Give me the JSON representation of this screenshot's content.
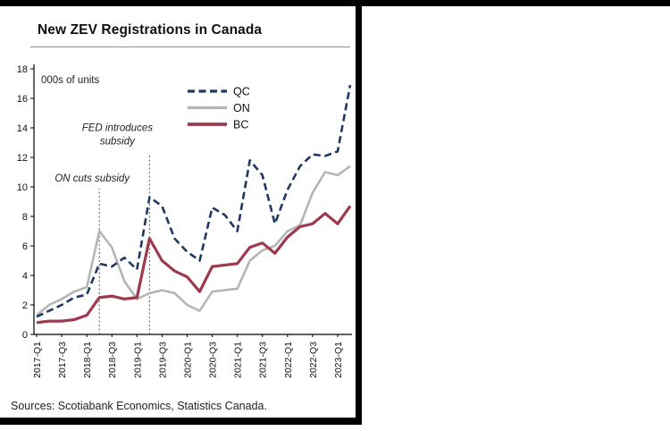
{
  "chart_data": {
    "type": "line",
    "title": "New ZEV Registrations in Canada",
    "unit_label": "000s of units",
    "x": [
      "2017-Q1",
      "2017-Q2",
      "2017-Q3",
      "2017-Q4",
      "2018-Q1",
      "2018-Q2",
      "2018-Q3",
      "2018-Q4",
      "2019-Q1",
      "2019-Q2",
      "2019-Q3",
      "2019-Q4",
      "2020-Q1",
      "2020-Q2",
      "2020-Q3",
      "2020-Q4",
      "2021-Q1",
      "2021-Q2",
      "2021-Q3",
      "2021-Q4",
      "2022-Q1",
      "2022-Q2",
      "2022-Q3",
      "2022-Q4",
      "2023-Q1",
      "2023-Q2"
    ],
    "x_tick_labels": [
      "2017-Q1",
      "2017-Q3",
      "2018-Q1",
      "2018-Q3",
      "2019-Q1",
      "2019-Q3",
      "2020-Q1",
      "2020-Q3",
      "2021-Q1",
      "2021-Q3",
      "2022-Q1",
      "2022-Q3",
      "2023-Q1"
    ],
    "ylim": [
      0,
      18
    ],
    "ytick_step": 2,
    "grid": false,
    "legend_position": "inside-top-center",
    "series": [
      {
        "name": "QC",
        "color": "#1f3864",
        "dash": "8 4.5",
        "width": 2.6,
        "values": [
          1.2,
          1.6,
          2.0,
          2.5,
          2.7,
          4.8,
          4.6,
          5.2,
          4.4,
          9.3,
          8.7,
          6.5,
          5.6,
          5.0,
          8.6,
          8.1,
          7.0,
          11.8,
          10.8,
          7.5,
          9.8,
          11.4,
          12.2,
          12.1,
          12.4,
          16.9
        ]
      },
      {
        "name": "ON",
        "color": "#b5b5b5",
        "dash": "",
        "width": 2.6,
        "values": [
          1.3,
          2.0,
          2.4,
          2.9,
          3.2,
          7.0,
          5.9,
          3.6,
          2.4,
          2.8,
          3.0,
          2.8,
          2.0,
          1.6,
          2.9,
          3.0,
          3.1,
          5.0,
          5.7,
          6.0,
          7.0,
          7.4,
          9.6,
          11.0,
          10.8,
          11.4
        ]
      },
      {
        "name": "BC",
        "color": "#9d3a4e",
        "dash": "",
        "width": 3.2,
        "values": [
          0.8,
          0.9,
          0.9,
          1.0,
          1.3,
          2.5,
          2.6,
          2.4,
          2.5,
          6.5,
          5.0,
          4.3,
          3.9,
          2.9,
          4.6,
          4.7,
          4.8,
          5.9,
          6.2,
          5.5,
          6.6,
          7.3,
          7.5,
          8.2,
          7.5,
          8.7
        ]
      }
    ],
    "annotations": [
      {
        "label_lines": [
          "ON cuts subsidy"
        ],
        "x": "2018-Q2",
        "x_index": 5,
        "line_top_value": 9.9,
        "label_y_value": 10.35,
        "label_anchor": "middle",
        "label_dx": -8
      },
      {
        "label_lines": [
          "FED introduces",
          "subsidy"
        ],
        "x": "2019-Q2",
        "x_index": 9,
        "line_top_value": 12.2,
        "label_y_value": 13.8,
        "label_anchor": "middle",
        "label_dx": -36
      }
    ]
  },
  "footer": {
    "sources": "Sources: Scotiabank Economics, Statistics Canada."
  }
}
